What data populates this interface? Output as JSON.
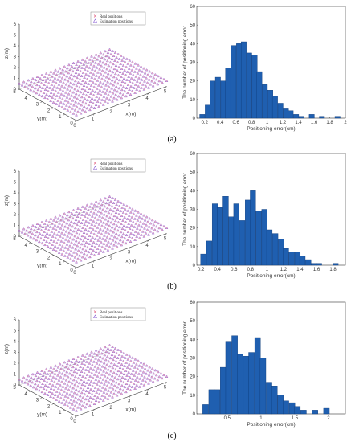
{
  "panels": [
    {
      "label": "(a)",
      "scatter": {
        "type": "scatter",
        "xlabel": "x(m)",
        "ylabel": "y(m)",
        "zlabel": "z(m)",
        "xlim": [
          0,
          5
        ],
        "ylim": [
          0,
          5
        ],
        "zlim": [
          0,
          6
        ],
        "x_ticks": [
          "0",
          "1",
          "2",
          "3",
          "4",
          "5"
        ],
        "y_ticks": [
          "0",
          "1",
          "2",
          "3",
          "4",
          "5"
        ],
        "z_ticks": [
          "0",
          "1",
          "2",
          "3",
          "4",
          "5",
          "6"
        ],
        "grid_n": 21,
        "z_level": 0.5,
        "legend": [
          "Real positions",
          "Estimation positions"
        ],
        "legend_position": "top-center",
        "colors": {
          "real": "#e06080",
          "estimation": "#8a5fd6"
        }
      },
      "chart_data": {
        "type": "bar",
        "xlabel": "Positioning error(cm)",
        "ylabel": "The number of positioning error",
        "xlim": [
          0.1,
          2.0
        ],
        "ylim": [
          0,
          60
        ],
        "x_ticks": [
          0.2,
          0.4,
          0.6,
          0.8,
          1.0,
          1.2,
          1.4,
          1.6,
          1.8,
          2.0
        ],
        "x_tick_labels": [
          "0.2",
          "0.4",
          "0.6",
          "0.8",
          "1",
          "1.2",
          "1.4",
          "1.6",
          "1.8",
          "2"
        ],
        "y_ticks": [
          0,
          10,
          20,
          30,
          40,
          50,
          60
        ],
        "bin_width": 0.0667,
        "x": [
          0.17,
          0.24,
          0.3,
          0.37,
          0.44,
          0.5,
          0.57,
          0.64,
          0.7,
          0.77,
          0.84,
          0.9,
          0.97,
          1.04,
          1.1,
          1.17,
          1.24,
          1.3,
          1.37,
          1.44,
          1.5,
          1.57,
          1.64,
          1.7,
          1.77,
          1.84,
          1.9
        ],
        "values": [
          2,
          7,
          20,
          22,
          20,
          27,
          39,
          40,
          41,
          35,
          34,
          25,
          18,
          15,
          12,
          8,
          5,
          4,
          2,
          1,
          0,
          2,
          0,
          1,
          0,
          0,
          1
        ],
        "color": "#1f5fb0"
      }
    },
    {
      "label": "(b)",
      "scatter": {
        "type": "scatter",
        "xlabel": "x(m)",
        "ylabel": "y(m)",
        "zlabel": "z(m)",
        "xlim": [
          0,
          5
        ],
        "ylim": [
          0,
          5
        ],
        "zlim": [
          0,
          6
        ],
        "x_ticks": [
          "0",
          "1",
          "2",
          "3",
          "4",
          "5"
        ],
        "y_ticks": [
          "0",
          "1",
          "2",
          "3",
          "4",
          "5"
        ],
        "z_ticks": [
          "0",
          "1",
          "2",
          "3",
          "4",
          "5",
          "6"
        ],
        "grid_n": 21,
        "z_level": 0.5,
        "legend": [
          "Real positions",
          "Estimation positions"
        ],
        "legend_position": "top-center",
        "colors": {
          "real": "#e06080",
          "estimation": "#8a5fd6"
        }
      },
      "chart_data": {
        "type": "bar",
        "xlabel": "Positioning error(cm)",
        "ylabel": "The number of positioning error",
        "xlim": [
          0.15,
          1.95
        ],
        "ylim": [
          0,
          60
        ],
        "x_ticks": [
          0.2,
          0.4,
          0.6,
          0.8,
          1.0,
          1.2,
          1.4,
          1.6,
          1.8
        ],
        "x_tick_labels": [
          "0.2",
          "0.4",
          "0.6",
          "0.8",
          "1",
          "1.2",
          "1.4",
          "1.6",
          "1.8"
        ],
        "y_ticks": [
          0,
          10,
          20,
          30,
          40,
          50,
          60
        ],
        "bin_width": 0.0667,
        "x": [
          0.23,
          0.3,
          0.37,
          0.43,
          0.5,
          0.57,
          0.63,
          0.7,
          0.77,
          0.83,
          0.9,
          0.97,
          1.03,
          1.1,
          1.17,
          1.23,
          1.3,
          1.37,
          1.43,
          1.5,
          1.57,
          1.63,
          1.7,
          1.77,
          1.83,
          1.9
        ],
        "values": [
          6,
          13,
          33,
          31,
          37,
          26,
          33,
          24,
          35,
          40,
          29,
          30,
          19,
          17,
          14,
          9,
          7,
          7,
          5,
          3,
          1,
          1,
          0,
          0,
          1,
          0
        ],
        "color": "#1f5fb0"
      }
    },
    {
      "label": "(c)",
      "scatter": {
        "type": "scatter",
        "xlabel": "x(m)",
        "ylabel": "y(m)",
        "zlabel": "z(m)",
        "xlim": [
          0,
          5
        ],
        "ylim": [
          0,
          5
        ],
        "zlim": [
          0,
          6
        ],
        "x_ticks": [
          "0",
          "1",
          "2",
          "3",
          "4",
          "5"
        ],
        "y_ticks": [
          "0",
          "1",
          "2",
          "3",
          "4",
          "5"
        ],
        "z_ticks": [
          "0",
          "1",
          "2",
          "3",
          "4",
          "5",
          "6"
        ],
        "grid_n": 21,
        "z_level": 0.5,
        "legend": [
          "Real positions",
          "Estimation positions"
        ],
        "legend_position": "top-center",
        "colors": {
          "real": "#e06080",
          "estimation": "#8a5fd6"
        }
      },
      "chart_data": {
        "type": "bar",
        "xlabel": "Positioning error(cm)",
        "ylabel": "The number of positioning error",
        "xlim": [
          0.05,
          2.25
        ],
        "ylim": [
          0,
          60
        ],
        "x_ticks": [
          0.5,
          1.0,
          1.5,
          2.0
        ],
        "x_tick_labels": [
          "0.5",
          "1",
          "1.5",
          "2"
        ],
        "y_ticks": [
          0,
          10,
          20,
          30,
          40,
          50,
          60
        ],
        "bin_width": 0.085,
        "x": [
          0.18,
          0.27,
          0.35,
          0.44,
          0.52,
          0.61,
          0.69,
          0.78,
          0.86,
          0.95,
          1.03,
          1.12,
          1.2,
          1.29,
          1.37,
          1.46,
          1.54,
          1.63,
          1.71,
          1.8,
          1.88,
          1.97,
          2.05,
          2.14
        ],
        "values": [
          5,
          13,
          13,
          25,
          39,
          42,
          32,
          31,
          33,
          41,
          30,
          17,
          15,
          10,
          7,
          6,
          4,
          2,
          0,
          2,
          0,
          3,
          0,
          0
        ],
        "color": "#1f5fb0"
      }
    }
  ]
}
